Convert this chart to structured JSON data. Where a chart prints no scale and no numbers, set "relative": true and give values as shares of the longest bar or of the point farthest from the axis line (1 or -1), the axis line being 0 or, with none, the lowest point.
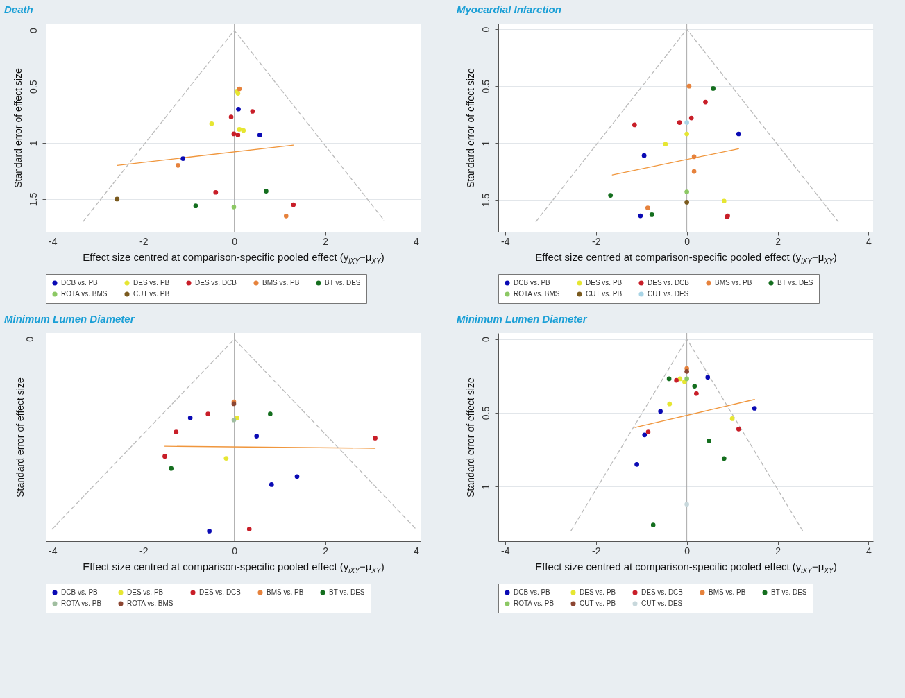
{
  "chart_data": [
    {
      "type": "scatter",
      "title": "Death",
      "xlabel": "Effect size centred at comparison-specific pooled effect (y$_{iXY}$−μ$_{XY}$)",
      "ylabel": "Standard error of effect size",
      "xlim": [
        -4.15,
        4.1
      ],
      "ylim": [
        1.79,
        -0.06
      ],
      "xticks": [
        -4,
        -2,
        0,
        2,
        4
      ],
      "yticks": [
        0,
        0.5,
        1,
        1.5
      ],
      "grid": "y",
      "legend": "bottom",
      "marker": "circle",
      "ref_lines": [
        {
          "axis": "x",
          "value": 0,
          "color": "#a8a8a8"
        }
      ],
      "series": [
        {
          "name": "DCB vs. PB",
          "color": "#0a0ab4",
          "x": [
            0.09,
            0.56,
            -1.13
          ],
          "values": [
            0.7,
            0.93,
            1.14
          ]
        },
        {
          "name": "DES vs. PB",
          "color": "#e6e632",
          "x": [
            0.08,
            0.06,
            0.11,
            0.2,
            -0.5
          ],
          "values": [
            0.56,
            0.54,
            0.88,
            0.89,
            0.83
          ]
        },
        {
          "name": "DES vs. DCB",
          "color": "#c81e28",
          "x": [
            0.4,
            -0.07,
            -0.01,
            0.08,
            -0.41,
            1.3
          ],
          "values": [
            0.72,
            0.77,
            0.92,
            0.93,
            1.44,
            1.55
          ]
        },
        {
          "name": "BMS vs. PB",
          "color": "#e6823c",
          "x": [
            0.11,
            -1.24,
            1.14
          ],
          "values": [
            0.52,
            1.2,
            1.65
          ]
        },
        {
          "name": "BT vs. DES",
          "color": "#146e1e",
          "x": [
            0.7,
            -0.85
          ],
          "values": [
            1.43,
            1.56
          ]
        },
        {
          "name": "ROTA vs. BMS",
          "color": "#8cc864",
          "x": [
            -0.01
          ],
          "values": [
            1.57
          ]
        },
        {
          "name": "CUT vs. PB",
          "color": "#7a5a1e",
          "x": [
            -2.58
          ],
          "values": [
            1.5
          ]
        },
        {
          "type": "line",
          "marker": "none",
          "color": "#f0963c",
          "line_style": "solid",
          "x": [
            -2.58,
            1.3
          ],
          "values": [
            1.2,
            1.02
          ]
        },
        {
          "type": "line",
          "marker": "none",
          "color": "#bbbbbb",
          "line_style": "dashed",
          "x": [
            -3.33,
            0,
            3.3
          ],
          "values": [
            1.7,
            0,
            1.69
          ]
        }
      ]
    },
    {
      "type": "scatter",
      "title": "Myocardial Infarction",
      "xlabel": "Effect size centred at comparison-specific pooled effect (y$_{iXY}$−μ$_{XY}$)",
      "ylabel": "Standard error of effect size",
      "xlim": [
        -4.15,
        4.1
      ],
      "ylim": [
        1.78,
        -0.05
      ],
      "xticks": [
        -4,
        -2,
        0,
        2,
        4
      ],
      "yticks": [
        0,
        0.5,
        1,
        1.5
      ],
      "grid": "y",
      "legend": "bottom",
      "marker": "circle",
      "ref_lines": [
        {
          "axis": "x",
          "value": 0,
          "color": "#a8a8a8"
        }
      ],
      "series": [
        {
          "name": "DCB vs. PB",
          "color": "#0a0ab4",
          "x": [
            1.14,
            -0.94,
            -1.02
          ],
          "values": [
            0.92,
            1.11,
            1.64
          ]
        },
        {
          "name": "DES vs. PB",
          "color": "#e6e632",
          "x": [
            0,
            -0.47,
            0.82
          ],
          "values": [
            0.92,
            1.01,
            1.51
          ]
        },
        {
          "name": "DES vs. DCB",
          "color": "#c81e28",
          "x": [
            0.41,
            0.1,
            -0.16,
            -1.15,
            0.9,
            0.89
          ],
          "values": [
            0.64,
            0.78,
            0.82,
            0.84,
            1.64,
            1.65
          ]
        },
        {
          "name": "BMS vs. PB",
          "color": "#e6823c",
          "x": [
            0.05,
            0.16,
            0.16,
            -0.86
          ],
          "values": [
            0.5,
            1.12,
            1.25,
            1.57
          ]
        },
        {
          "name": "BT vs. DES",
          "color": "#146e1e",
          "x": [
            0.58,
            -1.68,
            -0.77
          ],
          "values": [
            0.52,
            1.46,
            1.63
          ]
        },
        {
          "name": "ROTA vs. BMS",
          "color": "#8cc864",
          "x": [
            0
          ],
          "values": [
            1.43
          ]
        },
        {
          "name": "CUT vs. PB",
          "color": "#7a5a1e",
          "x": [
            0
          ],
          "values": [
            1.52
          ]
        },
        {
          "name": "CUT vs. DES",
          "color": "#a8d4e6",
          "x": [
            0
          ],
          "values": [
            0.82
          ]
        },
        {
          "type": "line",
          "marker": "none",
          "color": "#f0963c",
          "line_style": "solid",
          "x": [
            -1.64,
            1.14
          ],
          "values": [
            1.28,
            1.05
          ]
        },
        {
          "type": "line",
          "marker": "none",
          "color": "#bbbbbb",
          "line_style": "dashed",
          "x": [
            -3.32,
            0,
            3.33
          ],
          "values": [
            1.69,
            0,
            1.69
          ]
        }
      ]
    },
    {
      "type": "scatter",
      "title": "Minimum Lumen Diameter",
      "xlabel": "Effect size centred at comparison-specific pooled effect (y$_{iXY}$−μ$_{XY}$)",
      "ylabel": "Standard error of effect size",
      "relative": true,
      "annotations": [
        "0"
      ],
      "xlim": [
        -4.15,
        4.1
      ],
      "xticks": [
        -4,
        -2,
        0,
        2,
        4
      ],
      "legend": "bottom",
      "marker": "circle",
      "ref_lines": [
        {
          "axis": "x",
          "value": 0,
          "color": "#a8a8a8"
        }
      ],
      "series": [
        {
          "name": "DCB vs. PB",
          "color": "#0a0ab4",
          "x": [
            -0.97,
            0.49,
            1.38,
            0.82,
            -0.55
          ],
          "values": [
            0.61,
            0.52,
            0.32,
            0.28,
            0.05
          ]
        },
        {
          "name": "DES vs. PB",
          "color": "#e6e632",
          "x": [
            0.06,
            -0.18
          ],
          "values": [
            0.61,
            0.41
          ]
        },
        {
          "name": "DES vs. DCB",
          "color": "#c81e28",
          "x": [
            -0.58,
            -1.28,
            -1.53,
            3.1,
            0.33
          ],
          "values": [
            0.63,
            0.54,
            0.42,
            0.51,
            0.06
          ]
        },
        {
          "name": "BMS vs. PB",
          "color": "#e6823c",
          "x": [
            -0.01
          ],
          "values": [
            0.69
          ]
        },
        {
          "name": "BT vs. DES",
          "color": "#146e1e",
          "x": [
            0.79,
            -1.39
          ],
          "values": [
            0.63,
            0.36
          ]
        },
        {
          "name": "ROTA vs. PB",
          "color": "#a0bea0",
          "x": [
            -0.01
          ],
          "values": [
            0.6
          ]
        },
        {
          "name": "ROTA vs. BMS",
          "color": "#8c4632",
          "x": [
            -0.01
          ],
          "values": [
            0.68
          ]
        },
        {
          "type": "line",
          "marker": "none",
          "color": "#f0963c",
          "line_style": "solid",
          "x": [
            -1.53,
            3.1
          ],
          "values": [
            0.47,
            0.46
          ]
        },
        {
          "type": "line",
          "marker": "none",
          "color": "#bbbbbb",
          "line_style": "dashed",
          "x": [
            -4.01,
            0,
            4
          ],
          "values": [
            0.06,
            1,
            0.06
          ]
        }
      ]
    },
    {
      "type": "scatter",
      "title": "Minimum Lumen Diameter",
      "xlabel": "Effect size centred at comparison-specific pooled effect (y$_{iXY}$−μ$_{XY}$)",
      "ylabel": "Standard error of effect size",
      "xlim": [
        -4.15,
        4.1
      ],
      "ylim": [
        1.37,
        -0.04
      ],
      "xticks": [
        -4,
        -2,
        0,
        2,
        4
      ],
      "yticks": [
        0,
        0.5,
        1
      ],
      "grid": "y",
      "legend": "bottom",
      "marker": "circle",
      "ref_lines": [
        {
          "axis": "x",
          "value": 0,
          "color": "#a8a8a8"
        }
      ],
      "series": [
        {
          "name": "DCB vs. PB",
          "color": "#0a0ab4",
          "x": [
            0.46,
            1.49,
            -0.58,
            -0.93,
            -1.1
          ],
          "values": [
            0.26,
            0.47,
            0.49,
            0.65,
            0.85
          ]
        },
        {
          "name": "DES vs. PB",
          "color": "#e6e632",
          "x": [
            -0.05,
            -0.15,
            -0.38,
            1.0
          ],
          "values": [
            0.29,
            0.27,
            0.44,
            0.54
          ]
        },
        {
          "name": "DES vs. DCB",
          "color": "#c81e28",
          "x": [
            -0.23,
            0.21,
            -0.85,
            1.14
          ],
          "values": [
            0.28,
            0.37,
            0.63,
            0.61
          ]
        },
        {
          "name": "BMS vs. PB",
          "color": "#e6823c",
          "x": [
            0
          ],
          "values": [
            0.2
          ]
        },
        {
          "name": "BT vs. DES",
          "color": "#146e1e",
          "x": [
            -0.39,
            0.17,
            0.49,
            0.82,
            -0.74
          ],
          "values": [
            0.27,
            0.32,
            0.69,
            0.81,
            1.26
          ]
        },
        {
          "name": "ROTA vs. PB",
          "color": "#8cc864",
          "x": [
            0
          ],
          "values": [
            0.27
          ]
        },
        {
          "name": "CUT vs. PB",
          "color": "#8c4632",
          "x": [
            0
          ],
          "values": [
            0.22
          ]
        },
        {
          "name": "CUT vs. DES",
          "color": "#c8d8dc",
          "x": [
            0
          ],
          "values": [
            1.12
          ]
        },
        {
          "type": "line",
          "marker": "none",
          "color": "#f0963c",
          "line_style": "solid",
          "x": [
            -1.14,
            1.49
          ],
          "values": [
            0.6,
            0.41
          ]
        },
        {
          "type": "line",
          "marker": "none",
          "color": "#bbbbbb",
          "line_style": "dashed",
          "x": [
            -2.55,
            0,
            2.55
          ],
          "values": [
            1.3,
            0,
            1.3
          ]
        }
      ]
    }
  ]
}
